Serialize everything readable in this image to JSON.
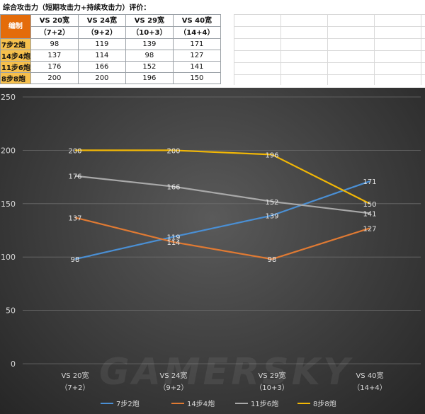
{
  "sheet": {
    "title": "综合攻击力（短期攻击力+持续攻击力）评价：",
    "corner_label": "编制",
    "headers": [
      {
        "line1": "VS 20宽",
        "line2": "（7+2）"
      },
      {
        "line1": "VS 24宽",
        "line2": "（9+2）"
      },
      {
        "line1": "VS 29宽",
        "line2": "（10+3）"
      },
      {
        "line1": "VS 40宽",
        "line2": "（14+4）"
      }
    ],
    "rows": [
      {
        "label": "7步2炮",
        "values": [
          "98",
          "119",
          "139",
          "171"
        ]
      },
      {
        "label": "14步4炮",
        "values": [
          "137",
          "114",
          "98",
          "127"
        ]
      },
      {
        "label": "11步6炮",
        "values": [
          "176",
          "166",
          "152",
          "141"
        ]
      },
      {
        "label": "8步8炮",
        "values": [
          "200",
          "200",
          "196",
          "150"
        ]
      }
    ]
  },
  "watermark": "GAMERSKY",
  "chart_data": {
    "type": "line",
    "categories": [
      {
        "line1": "VS 20宽",
        "line2": "（7+2）"
      },
      {
        "line1": "VS 24宽",
        "line2": "（9+2）"
      },
      {
        "line1": "VS 29宽",
        "line2": "（10+3）"
      },
      {
        "line1": "VS 40宽",
        "line2": "（14+4）"
      }
    ],
    "ylim": [
      0,
      250
    ],
    "yticks": [
      "0",
      "50",
      "100",
      "150",
      "200",
      "250"
    ],
    "grid": true,
    "legend_position": "bottom",
    "series": [
      {
        "name": "7步2炮",
        "color": "#4a8fd4",
        "values": [
          98,
          119,
          139,
          171
        ]
      },
      {
        "name": "14步4炮",
        "color": "#e07a33",
        "values": [
          137,
          114,
          98,
          127
        ]
      },
      {
        "name": "11步6炮",
        "color": "#a9a9a9",
        "values": [
          176,
          166,
          152,
          141
        ]
      },
      {
        "name": "8步8炮",
        "color": "#f2b705",
        "values": [
          200,
          200,
          196,
          150
        ]
      }
    ]
  }
}
